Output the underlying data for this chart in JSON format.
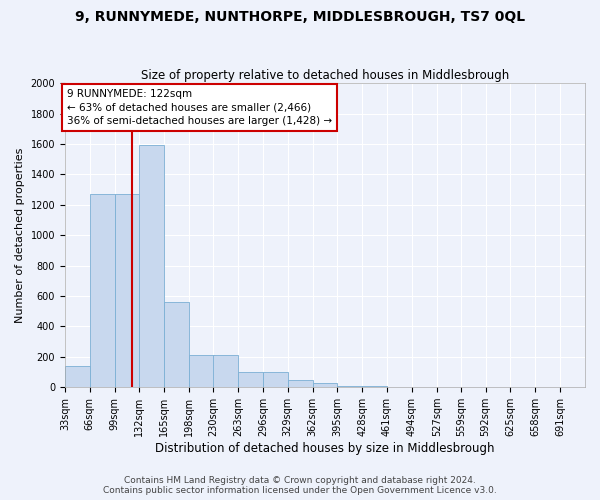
{
  "title": "9, RUNNYMEDE, NUNTHORPE, MIDDLESBROUGH, TS7 0QL",
  "subtitle": "Size of property relative to detached houses in Middlesbrough",
  "xlabel": "Distribution of detached houses by size in Middlesbrough",
  "ylabel": "Number of detached properties",
  "bar_color": "#c8d8ee",
  "bar_edge_color": "#7bafd4",
  "bar_left_edges": [
    33,
    66,
    99,
    132,
    165,
    198,
    230,
    263,
    296,
    329,
    362,
    395,
    428,
    461,
    494,
    527,
    559,
    592,
    625,
    658
  ],
  "bar_heights": [
    140,
    1270,
    1270,
    1590,
    560,
    215,
    215,
    100,
    100,
    50,
    25,
    10,
    5,
    3,
    2,
    2,
    2,
    1,
    1,
    1
  ],
  "bin_width": 33,
  "tick_labels": [
    "33sqm",
    "66sqm",
    "99sqm",
    "132sqm",
    "165sqm",
    "198sqm",
    "230sqm",
    "263sqm",
    "296sqm",
    "329sqm",
    "362sqm",
    "395sqm",
    "428sqm",
    "461sqm",
    "494sqm",
    "527sqm",
    "559sqm",
    "592sqm",
    "625sqm",
    "658sqm",
    "691sqm"
  ],
  "vline_x": 122,
  "vline_color": "#cc0000",
  "annotation_text": "9 RUNNYMEDE: 122sqm\n← 63% of detached houses are smaller (2,466)\n36% of semi-detached houses are larger (1,428) →",
  "annotation_box_color": "#ffffff",
  "annotation_box_edge": "#cc0000",
  "ylim": [
    0,
    2000
  ],
  "yticks": [
    0,
    200,
    400,
    600,
    800,
    1000,
    1200,
    1400,
    1600,
    1800,
    2000
  ],
  "footer_line1": "Contains HM Land Registry data © Crown copyright and database right 2024.",
  "footer_line2": "Contains public sector information licensed under the Open Government Licence v3.0.",
  "background_color": "#eef2fb",
  "grid_color": "#ffffff",
  "title_fontsize": 10,
  "subtitle_fontsize": 8.5,
  "xlabel_fontsize": 8.5,
  "ylabel_fontsize": 8,
  "tick_fontsize": 7,
  "footer_fontsize": 6.5
}
